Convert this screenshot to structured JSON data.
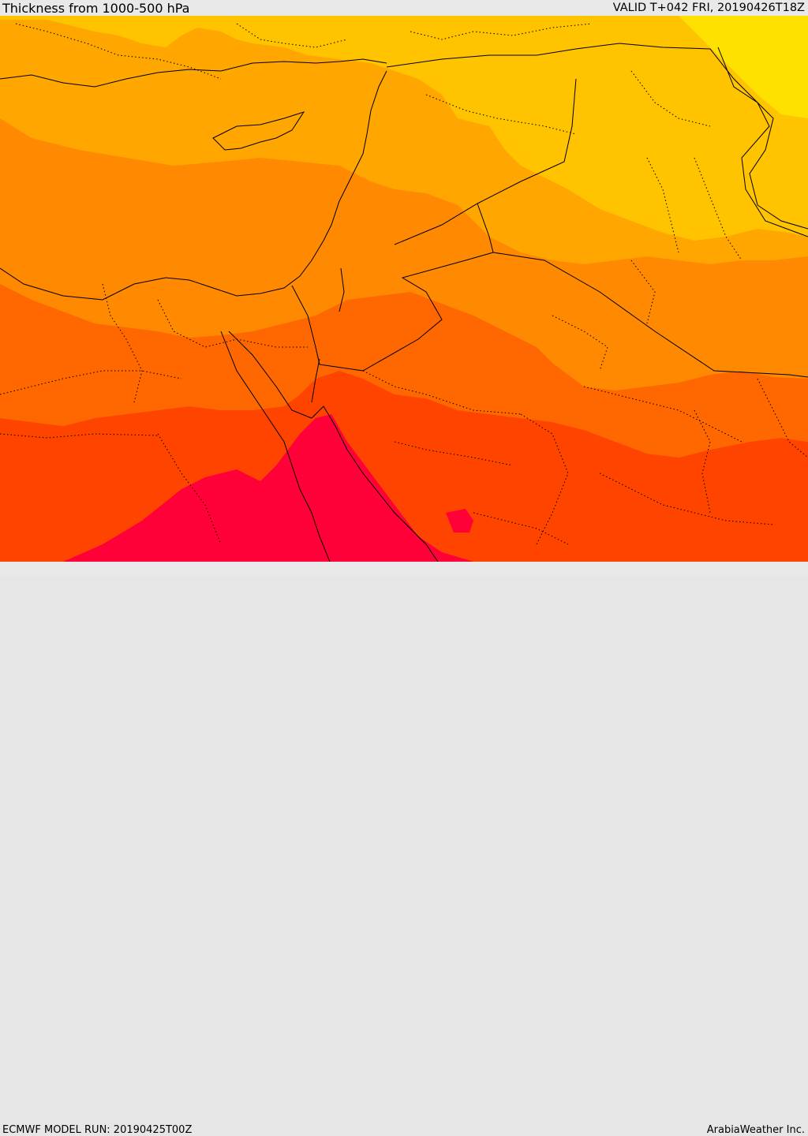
{
  "header": {
    "title": "Thickness from 1000-500 hPa",
    "valid_time": "VALID T+042 FRI, 20190426T18Z"
  },
  "footer": {
    "model_run": "ECMWF MODEL RUN: 20190425T00Z",
    "credit": "ArabiaWeather Inc."
  },
  "colors": {
    "band_yellow": "#ffe100",
    "band_gold": "#ffc300",
    "band_amber": "#ffa600",
    "band_orange": "#ff8900",
    "band_dark_orange": "#ff6700",
    "band_red_orange": "#ff4400",
    "band_crimson": "#ff0038",
    "border_line": "#000000"
  }
}
